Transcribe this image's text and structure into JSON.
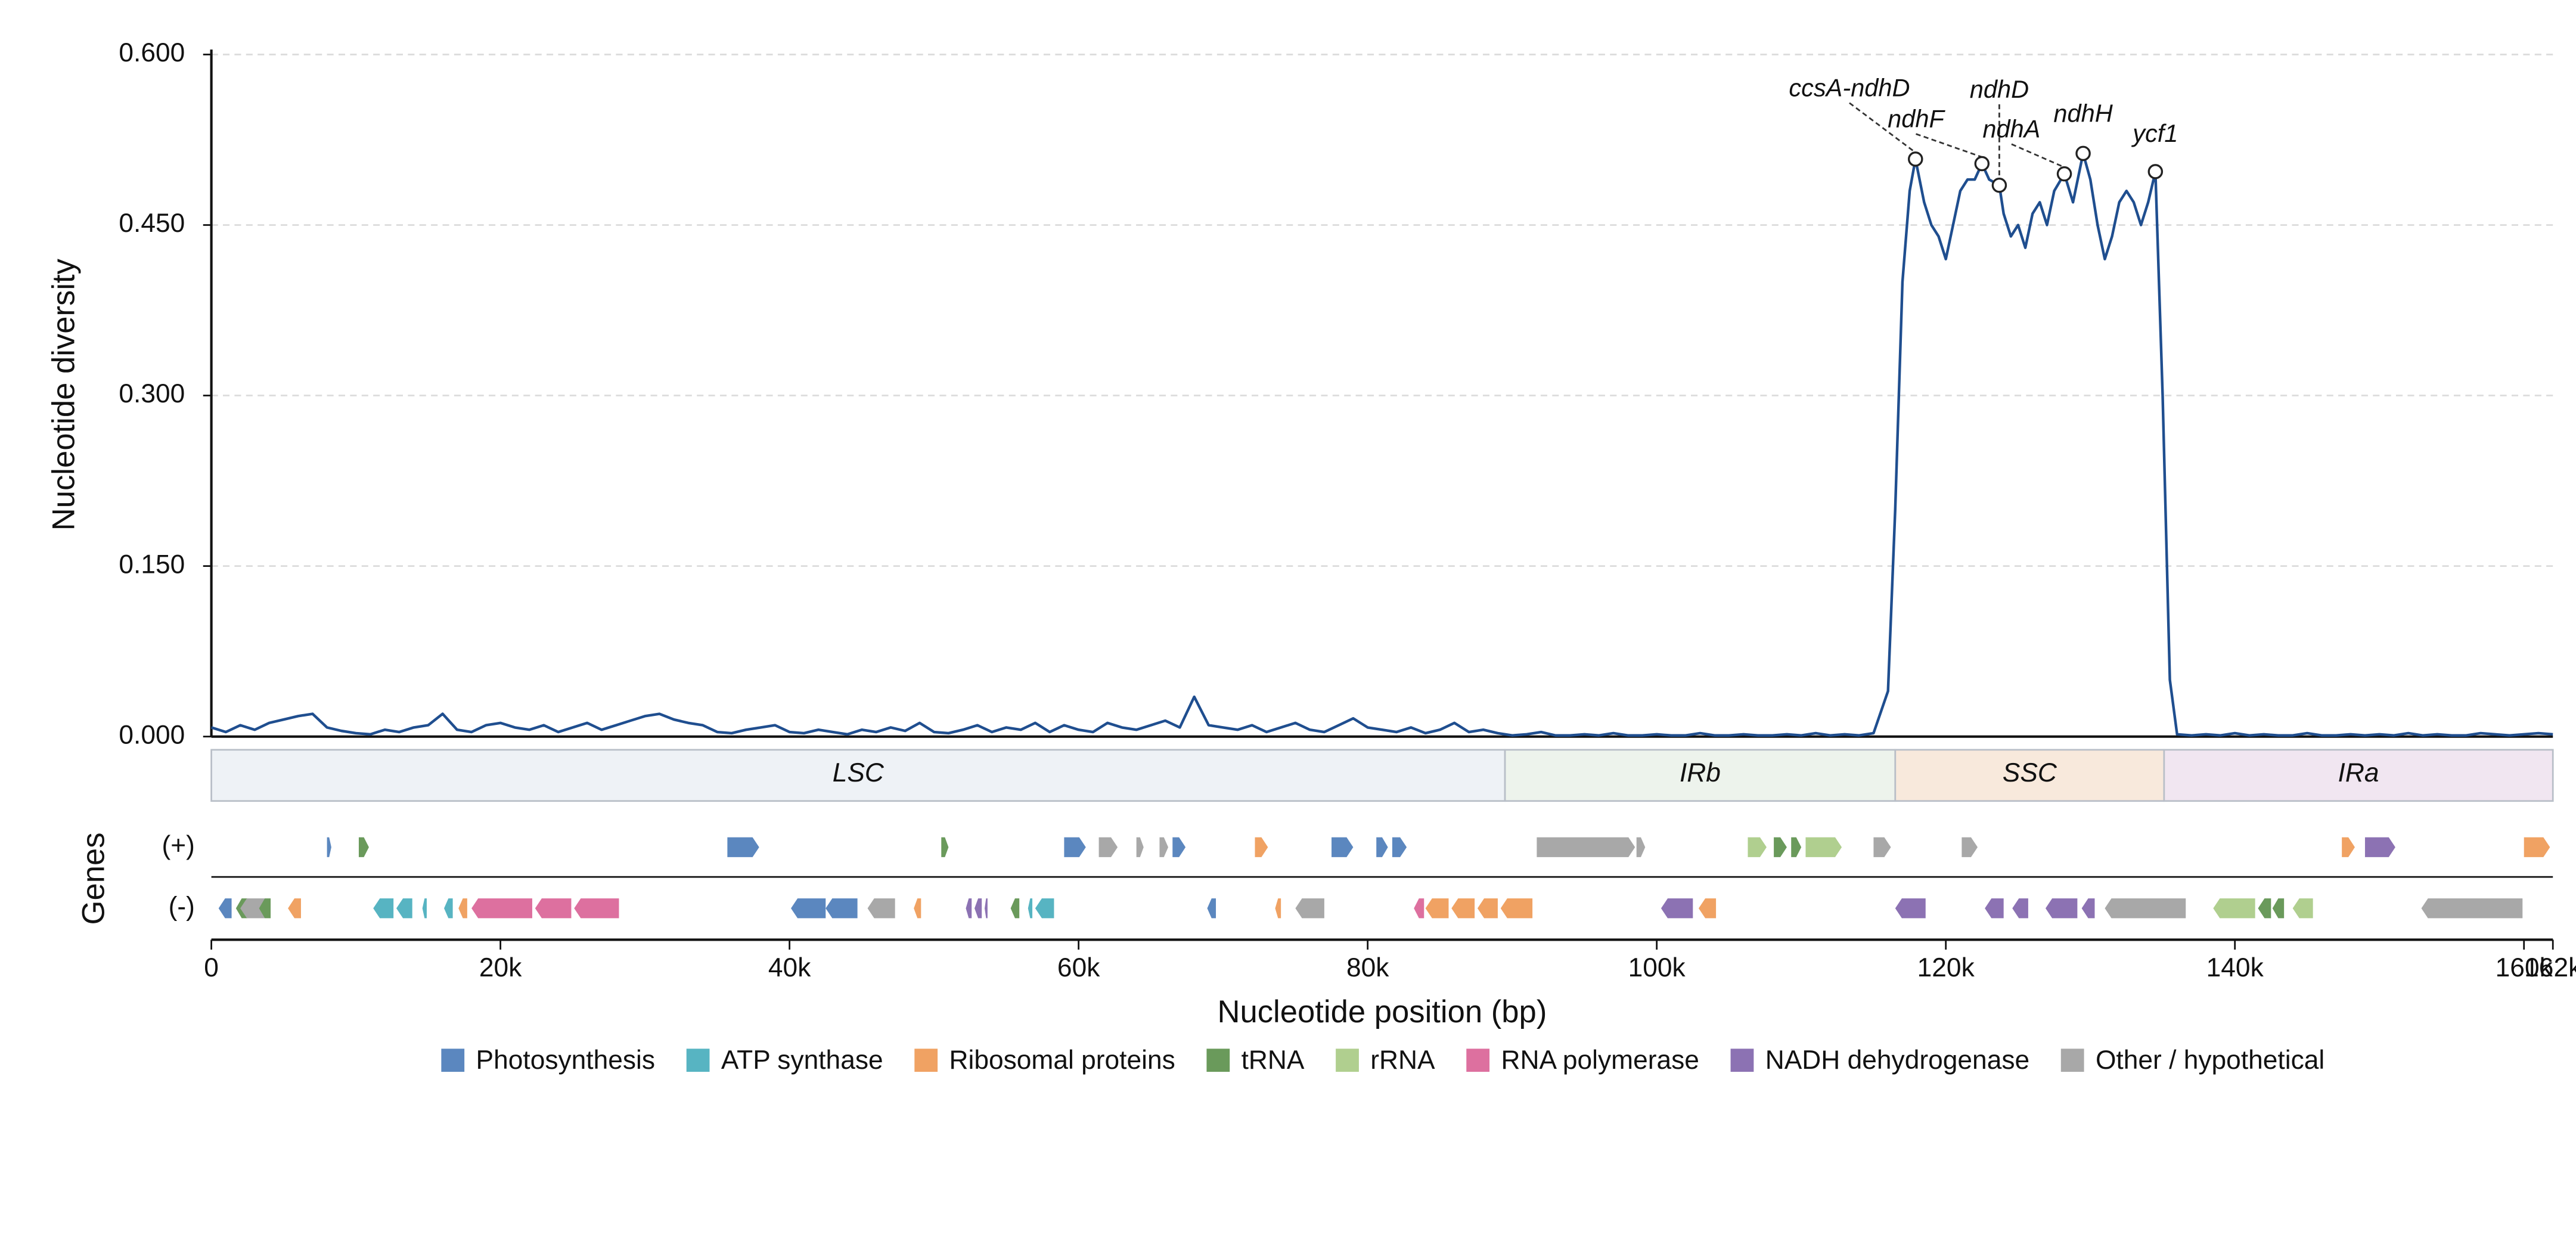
{
  "chart_data": {
    "type": "line",
    "ylabel": "Nucleotide diversity",
    "xlabel": "Nucleotide position (bp)",
    "gene_axis_label": "Genes",
    "xlim": [
      0,
      162000
    ],
    "ylim": [
      0,
      0.6
    ],
    "xticks": [
      0,
      {
        "value": 20000,
        "label": "20k"
      },
      {
        "value": 40000,
        "label": "40k"
      },
      {
        "value": 60000,
        "label": "60k"
      },
      {
        "value": 80000,
        "label": "80k"
      },
      {
        "value": 100000,
        "label": "100k"
      },
      {
        "value": 120000,
        "label": "120k"
      },
      {
        "value": 140000,
        "label": "140k"
      },
      {
        "value": 160000,
        "label": "160k"
      },
      {
        "value": 162000,
        "label": "162k"
      }
    ],
    "yticks": [
      {
        "value": 0,
        "label": "0.000"
      },
      {
        "value": 0.15,
        "label": "0.150"
      },
      {
        "value": 0.3,
        "label": "0.300"
      },
      {
        "value": 0.45,
        "label": "0.450"
      },
      {
        "value": 0.6,
        "label": "0.600"
      }
    ],
    "grid": true,
    "series": [
      {
        "name": "Nucleotide diversity",
        "color": "#1f4e8f",
        "x": [
          0,
          1000,
          2000,
          3000,
          4000,
          5000,
          6000,
          7000,
          8000,
          9000,
          10000,
          11000,
          12000,
          13000,
          14000,
          15000,
          16000,
          17000,
          18000,
          19000,
          20000,
          21000,
          22000,
          23000,
          24000,
          25000,
          26000,
          27000,
          28000,
          29000,
          30000,
          31000,
          32000,
          33000,
          34000,
          35000,
          36000,
          37000,
          38000,
          39000,
          40000,
          41000,
          42000,
          43000,
          44000,
          45000,
          46000,
          47000,
          48000,
          49000,
          50000,
          51000,
          52000,
          53000,
          54000,
          55000,
          56000,
          57000,
          58000,
          59000,
          60000,
          61000,
          62000,
          63000,
          64000,
          65000,
          66000,
          67000,
          68000,
          69000,
          70000,
          71000,
          72000,
          73000,
          74000,
          75000,
          76000,
          77000,
          78000,
          79000,
          80000,
          81000,
          82000,
          83000,
          84000,
          85000,
          86000,
          87000,
          88000,
          89000,
          90000,
          91000,
          92000,
          93000,
          94000,
          95000,
          96000,
          97000,
          98000,
          99000,
          100000,
          101000,
          102000,
          103000,
          104000,
          105000,
          106000,
          107000,
          108000,
          109000,
          110000,
          111000,
          112000,
          113000,
          114000,
          115000,
          116000,
          116500,
          117000,
          117500,
          117900,
          118500,
          119000,
          119500,
          120000,
          120500,
          121000,
          121500,
          122000,
          122500,
          123000,
          123700,
          124000,
          124500,
          125000,
          125500,
          126000,
          126500,
          127000,
          127500,
          128200,
          128800,
          129500,
          130000,
          130500,
          131000,
          131500,
          132000,
          132500,
          133000,
          133500,
          134000,
          134500,
          135000,
          135500,
          136000,
          137000,
          138000,
          139000,
          140000,
          141000,
          142000,
          143000,
          144000,
          145000,
          146000,
          147000,
          148000,
          149000,
          150000,
          151000,
          152000,
          153000,
          154000,
          155000,
          156000,
          157000,
          158000,
          159000,
          160000,
          161000,
          162000
        ],
        "values": [
          0.008,
          0.004,
          0.01,
          0.006,
          0.012,
          0.015,
          0.018,
          0.02,
          0.008,
          0.005,
          0.003,
          0.002,
          0.006,
          0.004,
          0.008,
          0.01,
          0.02,
          0.006,
          0.004,
          0.01,
          0.012,
          0.008,
          0.006,
          0.01,
          0.004,
          0.008,
          0.012,
          0.006,
          0.01,
          0.014,
          0.018,
          0.02,
          0.015,
          0.012,
          0.01,
          0.004,
          0.003,
          0.006,
          0.008,
          0.01,
          0.004,
          0.003,
          0.006,
          0.004,
          0.002,
          0.006,
          0.004,
          0.008,
          0.005,
          0.012,
          0.004,
          0.003,
          0.006,
          0.01,
          0.004,
          0.008,
          0.006,
          0.012,
          0.004,
          0.01,
          0.006,
          0.004,
          0.012,
          0.008,
          0.006,
          0.01,
          0.014,
          0.008,
          0.035,
          0.01,
          0.008,
          0.006,
          0.01,
          0.004,
          0.008,
          0.012,
          0.006,
          0.004,
          0.01,
          0.016,
          0.008,
          0.006,
          0.004,
          0.008,
          0.003,
          0.006,
          0.012,
          0.004,
          0.006,
          0.003,
          0.001,
          0.002,
          0.004,
          0.001,
          0.001,
          0.002,
          0.001,
          0.003,
          0.001,
          0.001,
          0.002,
          0.001,
          0.001,
          0.003,
          0.001,
          0.001,
          0.002,
          0.001,
          0.001,
          0.002,
          0.001,
          0.003,
          0.001,
          0.002,
          0.001,
          0.003,
          0.04,
          0.2,
          0.4,
          0.48,
          0.508,
          0.47,
          0.45,
          0.44,
          0.42,
          0.45,
          0.48,
          0.49,
          0.49,
          0.504,
          0.49,
          0.485,
          0.46,
          0.44,
          0.45,
          0.43,
          0.46,
          0.47,
          0.45,
          0.48,
          0.495,
          0.47,
          0.513,
          0.49,
          0.45,
          0.42,
          0.44,
          0.47,
          0.48,
          0.47,
          0.45,
          0.47,
          0.497,
          0.3,
          0.05,
          0.002,
          0.001,
          0.002,
          0.001,
          0.003,
          0.001,
          0.002,
          0.001,
          0.001,
          0.003,
          0.001,
          0.001,
          0.002,
          0.001,
          0.002,
          0.001,
          0.003,
          0.001,
          0.002,
          0.001,
          0.001,
          0.003,
          0.002,
          0.001,
          0.002,
          0.003,
          0.002
        ]
      }
    ],
    "annotations": [
      {
        "text": "ccsA-ndhD",
        "x": 117900,
        "y": 0.508
      },
      {
        "text": "ndhF",
        "x": 122500,
        "y": 0.504
      },
      {
        "text": "ndhD",
        "x": 123700,
        "y": 0.485
      },
      {
        "text": "ndhA",
        "x": 128200,
        "y": 0.495
      },
      {
        "text": "ndhH",
        "x": 129500,
        "y": 0.513
      },
      {
        "text": "ycf1",
        "x": 134500,
        "y": 0.497
      }
    ],
    "regions": [
      {
        "label": "LSC",
        "start": 0,
        "end": 89500,
        "color": "#eef2f6"
      },
      {
        "label": "IRb",
        "start": 89500,
        "end": 116500,
        "color": "#edf3ec"
      },
      {
        "label": "SSC",
        "start": 116500,
        "end": 135100,
        "color": "#f8e9dc"
      },
      {
        "label": "IRa",
        "start": 135100,
        "end": 162000,
        "color": "#f1e6f1"
      }
    ],
    "categories": [
      {
        "name": "Photosynthesis",
        "color": "#5b87bf"
      },
      {
        "name": "ATP synthase",
        "color": "#57b4c2"
      },
      {
        "name": "Ribosomal proteins",
        "color": "#f0a263"
      },
      {
        "name": "tRNA",
        "color": "#6a9a5b"
      },
      {
        "name": "rRNA",
        "color": "#b0cf8f"
      },
      {
        "name": "RNA polymerase",
        "color": "#dd709f"
      },
      {
        "name": "NADH dehydrogenase",
        "color": "#8c72b3"
      },
      {
        "name": "Other / hypothetical",
        "color": "#a8a8a8"
      }
    ],
    "tracks": [
      {
        "label": "(+)",
        "genes": [
          [
            8000,
            8300,
            0
          ],
          [
            10200,
            10900,
            3
          ],
          [
            35700,
            37900,
            0
          ],
          [
            50500,
            51000,
            3
          ],
          [
            59000,
            60500,
            0
          ],
          [
            61400,
            62700,
            7
          ],
          [
            64000,
            64500,
            7
          ],
          [
            65600,
            66200,
            7
          ],
          [
            66500,
            67400,
            0
          ],
          [
            72200,
            73100,
            2
          ],
          [
            77500,
            79000,
            0
          ],
          [
            80600,
            81400,
            0
          ],
          [
            81700,
            82700,
            0
          ],
          [
            91700,
            98500,
            7
          ],
          [
            98600,
            99200,
            7
          ],
          [
            106300,
            107600,
            4
          ],
          [
            108100,
            109000,
            3
          ],
          [
            109300,
            110000,
            3
          ],
          [
            110300,
            112800,
            4
          ],
          [
            115000,
            116200,
            7
          ],
          [
            121100,
            122200,
            7
          ],
          [
            147400,
            148300,
            2
          ],
          [
            149000,
            151100,
            6
          ],
          [
            160000,
            161800,
            2
          ]
        ]
      },
      {
        "label": "(-)",
        "genes": [
          [
            500,
            1400,
            0
          ],
          [
            1700,
            2500,
            3
          ],
          [
            2000,
            3700,
            7
          ],
          [
            3300,
            4100,
            3
          ],
          [
            5300,
            6200,
            2
          ],
          [
            11200,
            12600,
            1
          ],
          [
            12800,
            13900,
            1
          ],
          [
            14600,
            14900,
            1
          ],
          [
            16100,
            16700,
            1
          ],
          [
            17100,
            17700,
            2
          ],
          [
            18000,
            22200,
            5
          ],
          [
            22400,
            24900,
            5
          ],
          [
            25100,
            28200,
            5
          ],
          [
            40100,
            42500,
            0
          ],
          [
            42500,
            44700,
            0
          ],
          [
            45400,
            47300,
            7
          ],
          [
            48600,
            49100,
            2
          ],
          [
            52200,
            52600,
            6
          ],
          [
            52800,
            53300,
            6
          ],
          [
            53500,
            53700,
            6
          ],
          [
            55300,
            55900,
            3
          ],
          [
            56500,
            56800,
            1
          ],
          [
            57000,
            58300,
            1
          ],
          [
            68900,
            69500,
            0
          ],
          [
            73600,
            74000,
            2
          ],
          [
            75000,
            77000,
            7
          ],
          [
            83200,
            83900,
            5
          ],
          [
            84000,
            85600,
            2
          ],
          [
            85800,
            87400,
            2
          ],
          [
            87600,
            89000,
            2
          ],
          [
            89200,
            91400,
            2
          ],
          [
            100300,
            102500,
            6
          ],
          [
            102900,
            104100,
            2
          ],
          [
            116500,
            118600,
            6
          ],
          [
            122700,
            124000,
            6
          ],
          [
            124600,
            125700,
            6
          ],
          [
            126900,
            129100,
            6
          ],
          [
            129400,
            130300,
            6
          ],
          [
            131000,
            136600,
            7
          ],
          [
            138500,
            141400,
            4
          ],
          [
            141600,
            142500,
            3
          ],
          [
            142600,
            143400,
            3
          ],
          [
            144000,
            145400,
            4
          ],
          [
            152900,
            159900,
            7
          ]
        ]
      }
    ]
  }
}
